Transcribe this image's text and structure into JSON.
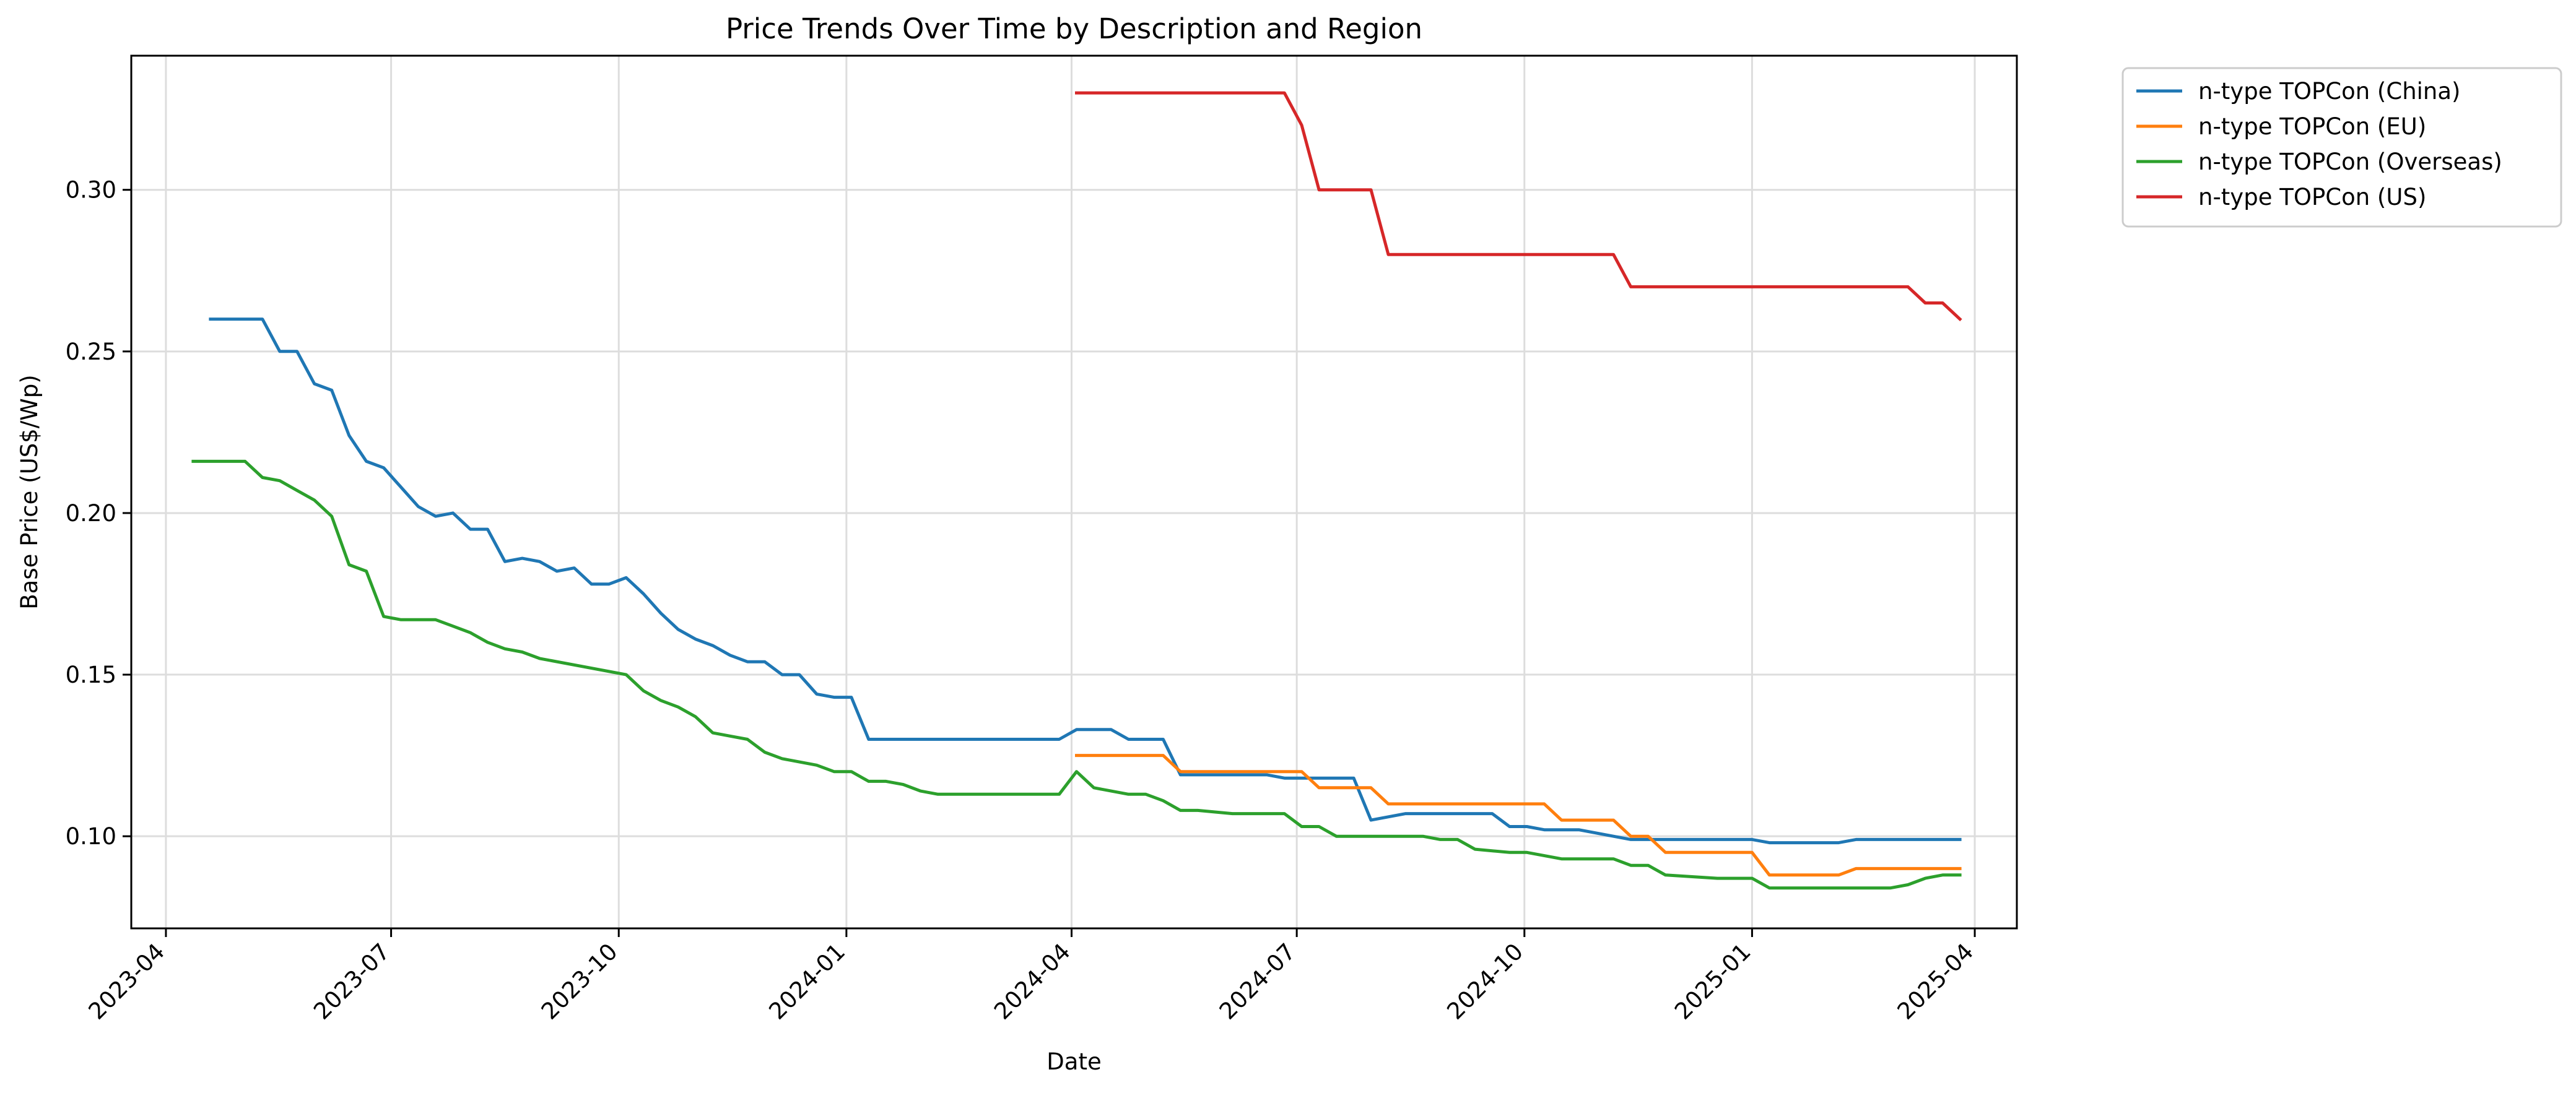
{
  "chart_data": {
    "type": "line",
    "title": "Price Trends Over Time by Description and Region",
    "xlabel": "Date",
    "ylabel": "Base Price (US$/Wp)",
    "x_type": "date",
    "xlim": [
      "2023-03-18",
      "2025-04-18"
    ],
    "ylim": [
      0.0715,
      0.3415
    ],
    "x_ticks": [
      "2023-04-01",
      "2023-07-01",
      "2023-10-01",
      "2024-01-01",
      "2024-04-01",
      "2024-07-01",
      "2024-10-01",
      "2025-01-01",
      "2025-04-01"
    ],
    "x_tick_labels": [
      "2023-04",
      "2023-07",
      "2023-10",
      "2024-01",
      "2024-04",
      "2024-07",
      "2024-10",
      "2025-01",
      "2025-04"
    ],
    "y_ticks": [
      0.1,
      0.15,
      0.2,
      0.25,
      0.3
    ],
    "y_tick_labels": [
      "0.10",
      "0.15",
      "0.20",
      "0.25",
      "0.30"
    ],
    "grid": true,
    "legend_position": "outside-top-right",
    "series": [
      {
        "name": "n-type TOPCon (China)",
        "color": "#1f77b4",
        "points": [
          [
            "2023-04-19",
            0.26
          ],
          [
            "2023-04-26",
            0.26
          ],
          [
            "2023-05-03",
            0.26
          ],
          [
            "2023-05-10",
            0.26
          ],
          [
            "2023-05-17",
            0.25
          ],
          [
            "2023-05-24",
            0.25
          ],
          [
            "2023-05-31",
            0.24
          ],
          [
            "2023-06-07",
            0.238
          ],
          [
            "2023-06-14",
            0.224
          ],
          [
            "2023-06-21",
            0.216
          ],
          [
            "2023-06-28",
            0.214
          ],
          [
            "2023-07-05",
            0.208
          ],
          [
            "2023-07-12",
            0.202
          ],
          [
            "2023-07-19",
            0.199
          ],
          [
            "2023-07-26",
            0.2
          ],
          [
            "2023-08-02",
            0.195
          ],
          [
            "2023-08-09",
            0.195
          ],
          [
            "2023-08-16",
            0.185
          ],
          [
            "2023-08-23",
            0.186
          ],
          [
            "2023-08-30",
            0.185
          ],
          [
            "2023-09-06",
            0.182
          ],
          [
            "2023-09-13",
            0.183
          ],
          [
            "2023-09-20",
            0.178
          ],
          [
            "2023-09-27",
            0.178
          ],
          [
            "2023-10-04",
            0.18
          ],
          [
            "2023-10-11",
            0.175
          ],
          [
            "2023-10-18",
            0.169
          ],
          [
            "2023-10-25",
            0.164
          ],
          [
            "2023-11-01",
            0.161
          ],
          [
            "2023-11-08",
            0.159
          ],
          [
            "2023-11-15",
            0.156
          ],
          [
            "2023-11-22",
            0.154
          ],
          [
            "2023-11-29",
            0.154
          ],
          [
            "2023-12-06",
            0.15
          ],
          [
            "2023-12-13",
            0.15
          ],
          [
            "2023-12-20",
            0.144
          ],
          [
            "2023-12-27",
            0.143
          ],
          [
            "2024-01-03",
            0.143
          ],
          [
            "2024-01-10",
            0.13
          ],
          [
            "2024-01-17",
            0.13
          ],
          [
            "2024-03-27",
            0.13
          ],
          [
            "2024-04-03",
            0.133
          ],
          [
            "2024-04-10",
            0.133
          ],
          [
            "2024-04-17",
            0.133
          ],
          [
            "2024-04-24",
            0.13
          ],
          [
            "2024-05-08",
            0.13
          ],
          [
            "2024-05-15",
            0.119
          ],
          [
            "2024-06-19",
            0.119
          ],
          [
            "2024-06-26",
            0.118
          ],
          [
            "2024-07-24",
            0.118
          ],
          [
            "2024-07-31",
            0.105
          ],
          [
            "2024-08-07",
            0.106
          ],
          [
            "2024-08-14",
            0.107
          ],
          [
            "2024-09-18",
            0.107
          ],
          [
            "2024-09-25",
            0.103
          ],
          [
            "2024-10-02",
            0.103
          ],
          [
            "2024-10-09",
            0.102
          ],
          [
            "2024-10-23",
            0.102
          ],
          [
            "2024-10-30",
            0.101
          ],
          [
            "2024-11-06",
            0.1
          ],
          [
            "2024-11-13",
            0.099
          ],
          [
            "2025-01-01",
            0.099
          ],
          [
            "2025-01-08",
            0.098
          ],
          [
            "2025-02-05",
            0.098
          ],
          [
            "2025-02-12",
            0.099
          ],
          [
            "2025-03-26",
            0.099
          ]
        ]
      },
      {
        "name": "n-type TOPCon (EU)",
        "color": "#ff7f0e",
        "points": [
          [
            "2024-04-03",
            0.125
          ],
          [
            "2024-05-08",
            0.125
          ],
          [
            "2024-05-15",
            0.12
          ],
          [
            "2024-07-03",
            0.12
          ],
          [
            "2024-07-10",
            0.115
          ],
          [
            "2024-07-31",
            0.115
          ],
          [
            "2024-08-07",
            0.11
          ],
          [
            "2024-10-09",
            0.11
          ],
          [
            "2024-10-16",
            0.105
          ],
          [
            "2024-11-06",
            0.105
          ],
          [
            "2024-11-13",
            0.1
          ],
          [
            "2024-11-20",
            0.1
          ],
          [
            "2024-11-27",
            0.095
          ],
          [
            "2025-01-01",
            0.095
          ],
          [
            "2025-01-08",
            0.088
          ],
          [
            "2025-02-05",
            0.088
          ],
          [
            "2025-02-12",
            0.09
          ],
          [
            "2025-03-26",
            0.09
          ]
        ]
      },
      {
        "name": "n-type TOPCon (Overseas)",
        "color": "#2ca02c",
        "points": [
          [
            "2023-04-12",
            0.216
          ],
          [
            "2023-04-19",
            0.216
          ],
          [
            "2023-04-26",
            0.216
          ],
          [
            "2023-05-03",
            0.216
          ],
          [
            "2023-05-10",
            0.211
          ],
          [
            "2023-05-17",
            0.21
          ],
          [
            "2023-05-24",
            0.207
          ],
          [
            "2023-05-31",
            0.204
          ],
          [
            "2023-06-07",
            0.199
          ],
          [
            "2023-06-14",
            0.184
          ],
          [
            "2023-06-21",
            0.182
          ],
          [
            "2023-06-28",
            0.168
          ],
          [
            "2023-07-05",
            0.167
          ],
          [
            "2023-07-19",
            0.167
          ],
          [
            "2023-07-26",
            0.165
          ],
          [
            "2023-08-02",
            0.163
          ],
          [
            "2023-08-09",
            0.16
          ],
          [
            "2023-08-16",
            0.158
          ],
          [
            "2023-08-23",
            0.157
          ],
          [
            "2023-08-30",
            0.155
          ],
          [
            "2023-10-04",
            0.15
          ],
          [
            "2023-10-11",
            0.145
          ],
          [
            "2023-10-18",
            0.142
          ],
          [
            "2023-10-25",
            0.14
          ],
          [
            "2023-11-01",
            0.137
          ],
          [
            "2023-11-08",
            0.132
          ],
          [
            "2023-11-15",
            0.131
          ],
          [
            "2023-11-22",
            0.13
          ],
          [
            "2023-11-29",
            0.126
          ],
          [
            "2023-12-06",
            0.124
          ],
          [
            "2023-12-20",
            0.122
          ],
          [
            "2023-12-27",
            0.12
          ],
          [
            "2024-01-03",
            0.12
          ],
          [
            "2024-01-10",
            0.117
          ],
          [
            "2024-01-17",
            0.117
          ],
          [
            "2024-01-24",
            0.116
          ],
          [
            "2024-01-31",
            0.114
          ],
          [
            "2024-02-07",
            0.113
          ],
          [
            "2024-03-27",
            0.113
          ],
          [
            "2024-04-03",
            0.12
          ],
          [
            "2024-04-10",
            0.115
          ],
          [
            "2024-04-17",
            0.114
          ],
          [
            "2024-04-24",
            0.113
          ],
          [
            "2024-05-01",
            0.113
          ],
          [
            "2024-05-08",
            0.111
          ],
          [
            "2024-05-15",
            0.108
          ],
          [
            "2024-05-22",
            0.108
          ],
          [
            "2024-06-05",
            0.107
          ],
          [
            "2024-06-26",
            0.107
          ],
          [
            "2024-07-03",
            0.103
          ],
          [
            "2024-07-10",
            0.103
          ],
          [
            "2024-07-17",
            0.1
          ],
          [
            "2024-08-21",
            0.1
          ],
          [
            "2024-08-28",
            0.099
          ],
          [
            "2024-09-04",
            0.099
          ],
          [
            "2024-09-11",
            0.096
          ],
          [
            "2024-09-25",
            0.095
          ],
          [
            "2024-10-02",
            0.095
          ],
          [
            "2024-10-16",
            0.093
          ],
          [
            "2024-11-06",
            0.093
          ],
          [
            "2024-11-13",
            0.091
          ],
          [
            "2024-11-20",
            0.091
          ],
          [
            "2024-11-27",
            0.088
          ],
          [
            "2024-12-18",
            0.087
          ],
          [
            "2025-01-01",
            0.087
          ],
          [
            "2025-01-08",
            0.084
          ],
          [
            "2025-02-26",
            0.084
          ],
          [
            "2025-03-05",
            0.085
          ],
          [
            "2025-03-12",
            0.087
          ],
          [
            "2025-03-19",
            0.088
          ],
          [
            "2025-03-26",
            0.088
          ]
        ]
      },
      {
        "name": "n-type TOPCon (US)",
        "color": "#d62728",
        "points": [
          [
            "2024-04-03",
            0.33
          ],
          [
            "2024-06-26",
            0.33
          ],
          [
            "2024-07-03",
            0.32
          ],
          [
            "2024-07-10",
            0.3
          ],
          [
            "2024-07-31",
            0.3
          ],
          [
            "2024-08-07",
            0.28
          ],
          [
            "2024-11-06",
            0.28
          ],
          [
            "2024-11-13",
            0.27
          ],
          [
            "2025-03-05",
            0.27
          ],
          [
            "2025-03-12",
            0.265
          ],
          [
            "2025-03-19",
            0.265
          ],
          [
            "2025-03-26",
            0.26
          ]
        ]
      }
    ]
  }
}
